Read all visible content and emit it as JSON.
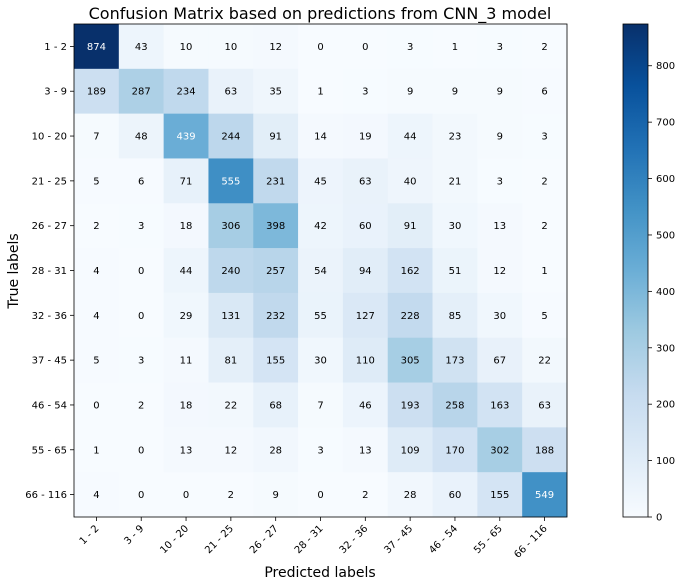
{
  "chart_data": {
    "type": "heatmap",
    "title": "Confusion Matrix based on predictions from CNN_3 model",
    "xlabel": "Predicted labels",
    "ylabel": "True labels",
    "x_categories": [
      "1 - 2",
      "3 - 9",
      "10 - 20",
      "21 - 25",
      "26 - 27",
      "28 - 31",
      "32 - 36",
      "37 - 45",
      "46 - 54",
      "55 - 65",
      "66 - 116"
    ],
    "y_categories": [
      "1 - 2",
      "3 - 9",
      "10 - 20",
      "21 - 25",
      "26 - 27",
      "28 - 31",
      "32 - 36",
      "37 - 45",
      "46 - 54",
      "55 - 65",
      "66 - 116"
    ],
    "values": [
      [
        874,
        43,
        10,
        10,
        12,
        0,
        0,
        3,
        1,
        3,
        2
      ],
      [
        189,
        287,
        234,
        63,
        35,
        1,
        3,
        9,
        9,
        9,
        6
      ],
      [
        7,
        48,
        439,
        244,
        91,
        14,
        19,
        44,
        23,
        9,
        3
      ],
      [
        5,
        6,
        71,
        555,
        231,
        45,
        63,
        40,
        21,
        3,
        2
      ],
      [
        2,
        3,
        18,
        306,
        398,
        42,
        60,
        91,
        30,
        13,
        2
      ],
      [
        4,
        0,
        44,
        240,
        257,
        54,
        94,
        162,
        51,
        12,
        1
      ],
      [
        4,
        0,
        29,
        131,
        232,
        55,
        127,
        228,
        85,
        30,
        5
      ],
      [
        5,
        3,
        11,
        81,
        155,
        30,
        110,
        305,
        173,
        67,
        22
      ],
      [
        0,
        2,
        18,
        22,
        68,
        7,
        46,
        193,
        258,
        163,
        63
      ],
      [
        1,
        0,
        13,
        12,
        28,
        3,
        13,
        109,
        170,
        302,
        188
      ],
      [
        4,
        0,
        0,
        2,
        9,
        0,
        2,
        28,
        60,
        155,
        549
      ]
    ],
    "colormap": "Blues",
    "color_range": [
      0,
      874
    ],
    "colorbar_ticks": [
      0,
      100,
      200,
      300,
      400,
      500,
      600,
      700,
      800
    ],
    "x_tick_rotation": 45,
    "grid": false
  }
}
